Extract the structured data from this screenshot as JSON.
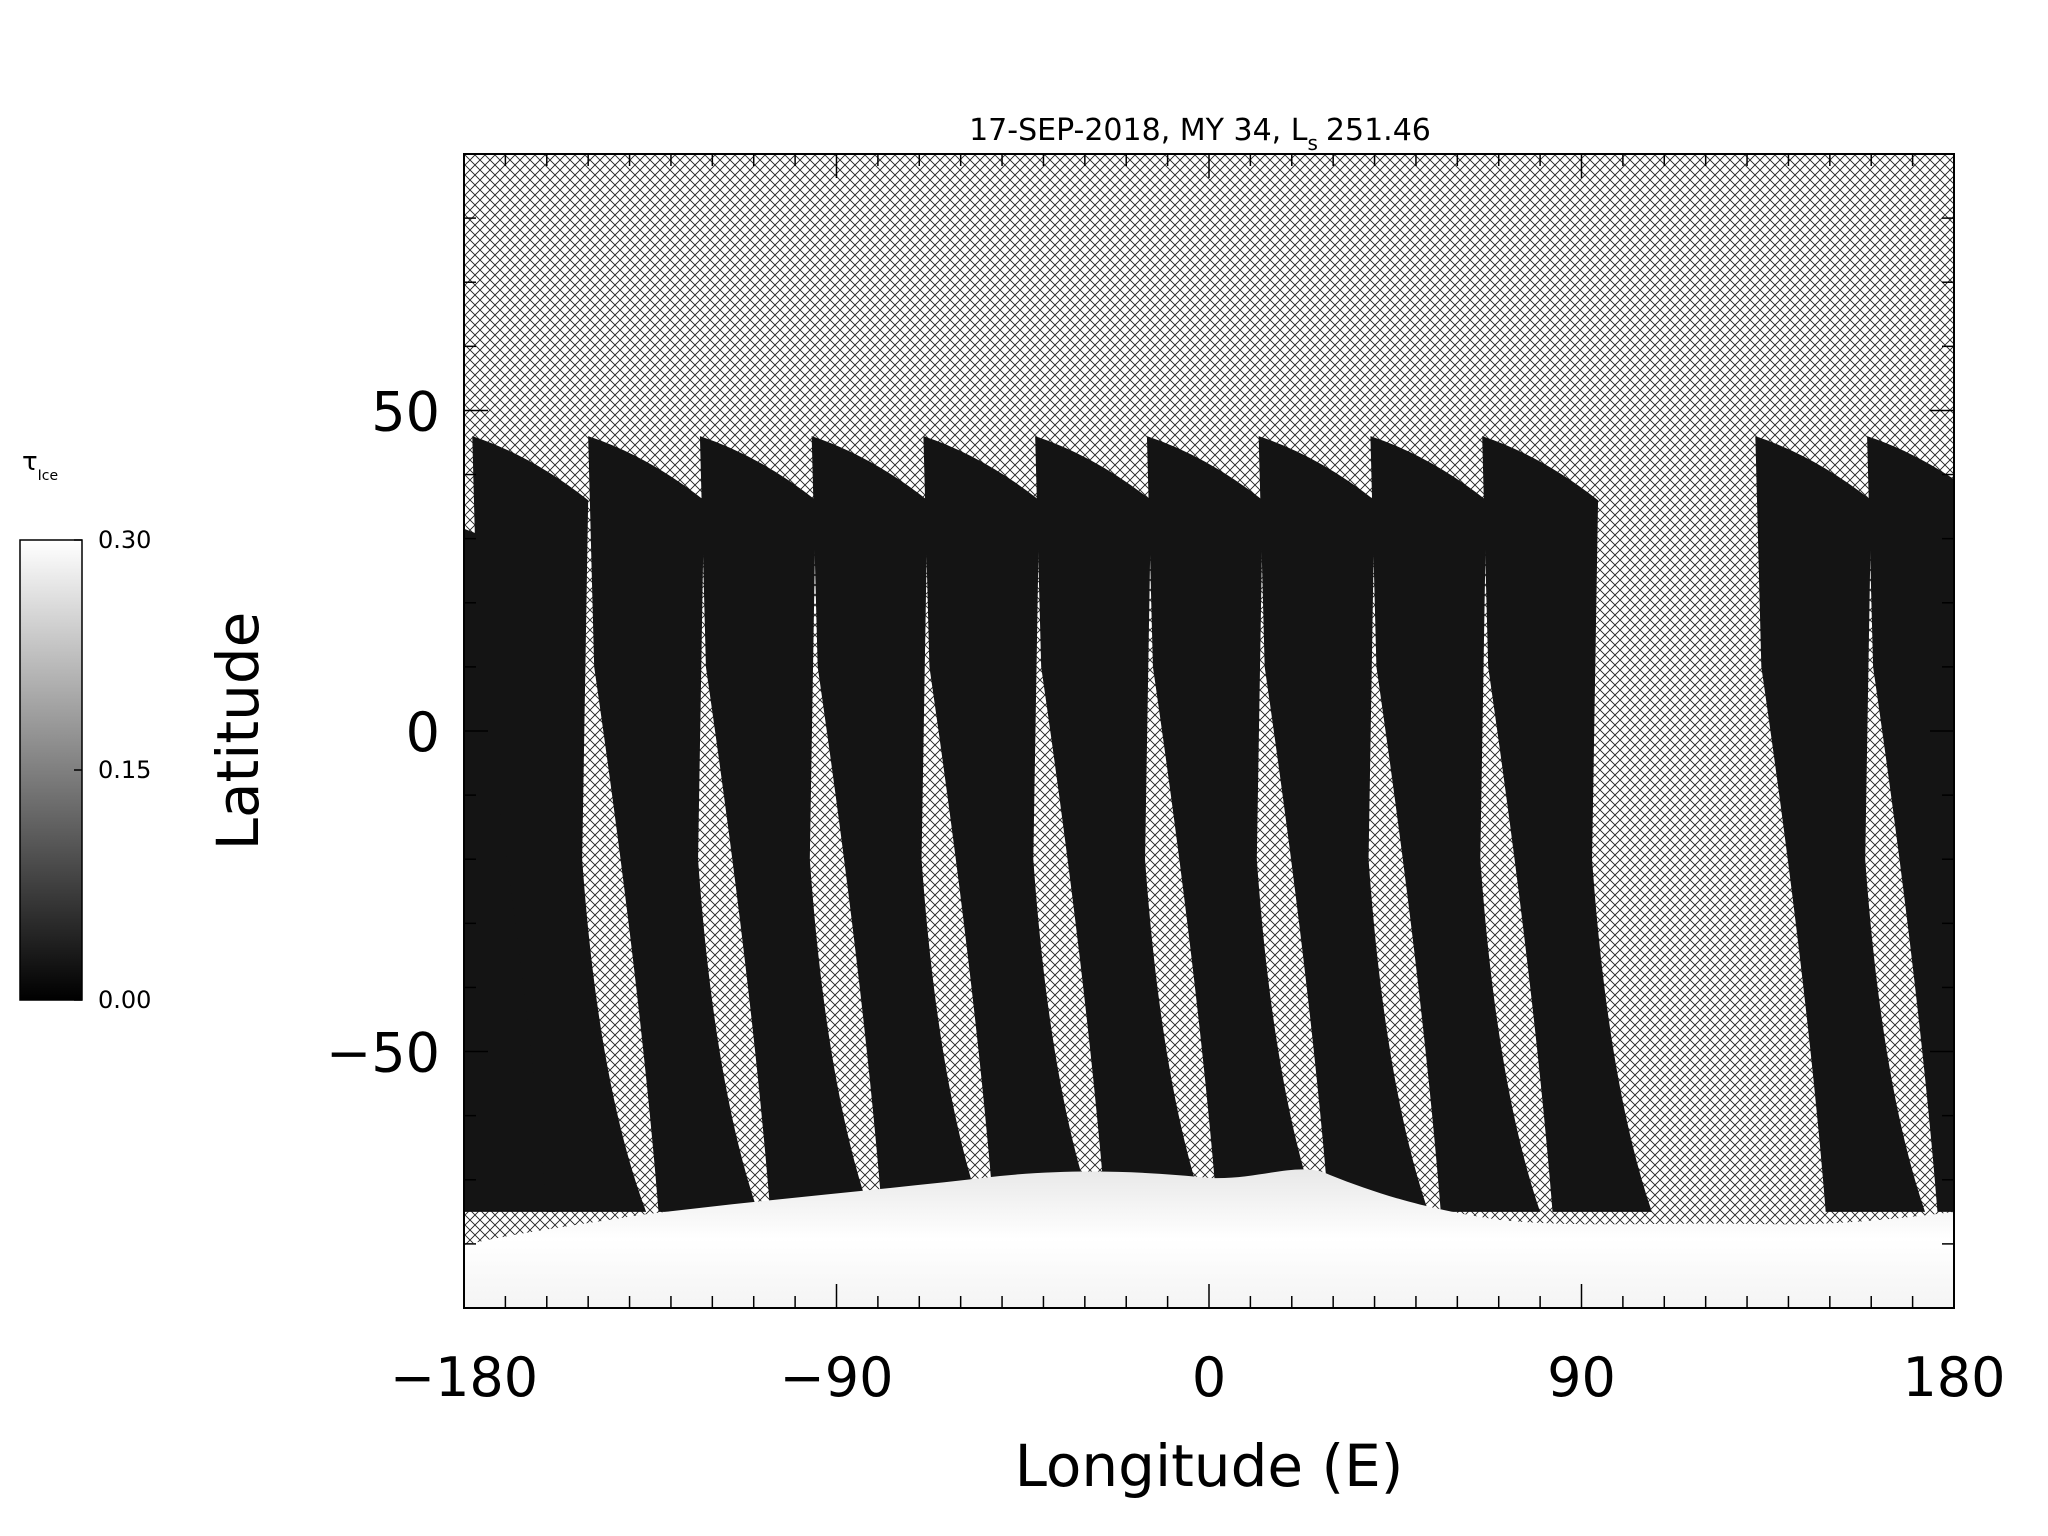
{
  "chart_data": {
    "type": "heatmap",
    "title": "17-SEP-2018, MY 34,  L",
    "title_subscript": "s",
    "title_value": "251.46",
    "xlabel": "Longitude (E)",
    "ylabel": "Latitude",
    "xlim": [
      -180,
      180
    ],
    "ylim": [
      -90,
      90
    ],
    "x_ticks": [
      -180,
      -90,
      0,
      90,
      180
    ],
    "x_tick_labels": [
      "−180",
      "−90",
      "0",
      "90",
      "180"
    ],
    "y_ticks": [
      -50,
      0,
      50
    ],
    "y_tick_labels": [
      "−50",
      "0",
      "50"
    ],
    "missing_data_pattern": "crosshatch",
    "swaths": [
      {
        "lon_top": -182,
        "lon_bottom": -182,
        "lat_top": 32
      },
      {
        "lon_top": -178,
        "lon_bottom": -160,
        "lat_top": 46
      },
      {
        "lon_top": -150,
        "lon_bottom": -133,
        "lat_top": 46
      },
      {
        "lon_top": -123,
        "lon_bottom": -106,
        "lat_top": 46
      },
      {
        "lon_top": -96,
        "lon_bottom": -79,
        "lat_top": 46
      },
      {
        "lon_top": -69,
        "lon_bottom": -52,
        "lat_top": 46
      },
      {
        "lon_top": -42,
        "lon_bottom": -25,
        "lat_top": 46
      },
      {
        "lon_top": -15,
        "lon_bottom": 2,
        "lat_top": 46
      },
      {
        "lon_top": 12,
        "lon_bottom": 29,
        "lat_top": 46
      },
      {
        "lon_top": 39,
        "lon_bottom": 56,
        "lat_top": 46
      },
      {
        "lon_top": 66,
        "lon_bottom": 83,
        "lat_top": 46
      },
      {
        "lon_top": 132,
        "lon_bottom": 149,
        "lat_top": 46
      },
      {
        "lon_top": 159,
        "lon_bottom": 176,
        "lat_top": 46
      }
    ],
    "colorbar": {
      "label": "τ",
      "label_subscript": "Ice",
      "min": 0.0,
      "max": 0.3,
      "tick_values": [
        0.0,
        0.15,
        0.3
      ],
      "tick_labels": [
        "0.00",
        "0.15",
        "0.30"
      ],
      "colormap": "grayscale"
    }
  }
}
